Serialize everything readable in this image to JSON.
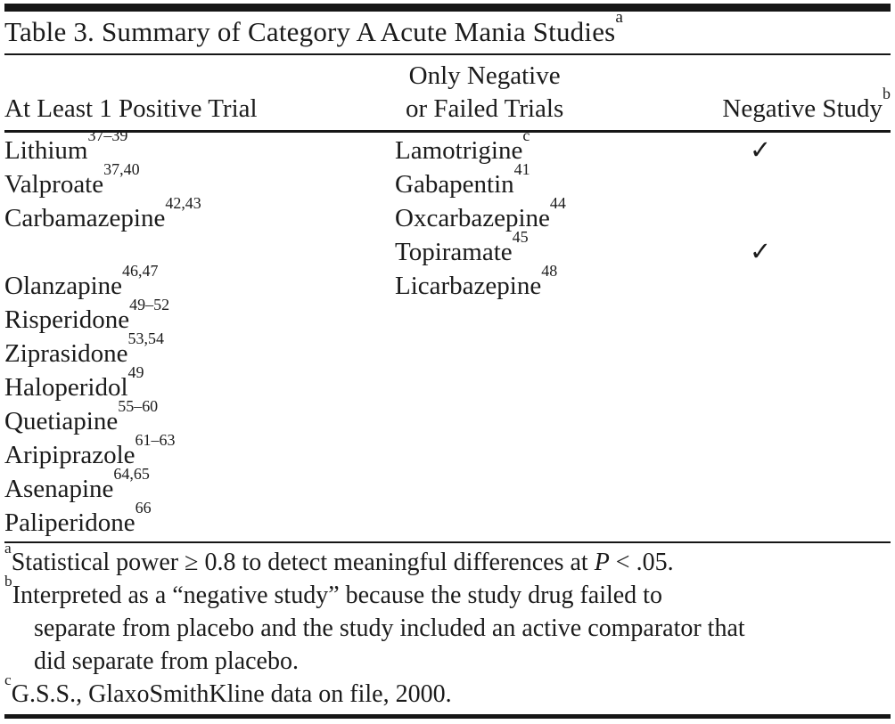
{
  "page": {
    "background_color": "#ffffff",
    "text_color": "#1b1b1b",
    "rule_color": "#161616"
  },
  "title": {
    "text": "Table 3. Summary of Category A Acute Mania Studies",
    "superscript": "a"
  },
  "table": {
    "check_glyph": "✓",
    "headers": {
      "col1": "At Least 1 Positive Trial",
      "col2_line1": "Only Negative",
      "col2_line2": "or Failed Trials",
      "col3": {
        "text": "Negative Study",
        "superscript": "b"
      }
    },
    "rows": [
      {
        "c1": {
          "name": "Lithium",
          "sup": "37–39"
        },
        "c2": {
          "name": "Lamotrigine",
          "sup": "c"
        },
        "check": true
      },
      {
        "c1": {
          "name": "Valproate",
          "sup": "37,40"
        },
        "c2": {
          "name": "Gabapentin",
          "sup": "41"
        },
        "check": false
      },
      {
        "c1": {
          "name": "Carbamazepine",
          "sup": "42,43"
        },
        "c2": {
          "name": "Oxcarbazepine",
          "sup": "44"
        },
        "check": false
      },
      {
        "c1": null,
        "c2": {
          "name": "Topiramate",
          "sup": "45"
        },
        "check": true
      },
      {
        "c1": {
          "name": "Olanzapine",
          "sup": "46,47"
        },
        "c2": {
          "name": "Licarbazepine",
          "sup": "48"
        },
        "check": false
      },
      {
        "c1": {
          "name": "Risperidone",
          "sup": "49–52"
        },
        "c2": null,
        "check": false
      },
      {
        "c1": {
          "name": "Ziprasidone",
          "sup": "53,54"
        },
        "c2": null,
        "check": false
      },
      {
        "c1": {
          "name": "Haloperidol",
          "sup": "49"
        },
        "c2": null,
        "check": false
      },
      {
        "c1": {
          "name": "Quetiapine",
          "sup": "55–60"
        },
        "c2": null,
        "check": false
      },
      {
        "c1": {
          "name": "Aripiprazole",
          "sup": "61–63"
        },
        "c2": null,
        "check": false
      },
      {
        "c1": {
          "name": "Asenapine",
          "sup": "64,65"
        },
        "c2": null,
        "check": false
      },
      {
        "c1": {
          "name": "Paliperidone",
          "sup": "66"
        },
        "c2": null,
        "check": false
      }
    ]
  },
  "footnotes": [
    {
      "marker": "a",
      "lines": [
        [
          {
            "text": "Statistical power ≥ 0.8 to detect meaningful differences at "
          },
          {
            "text": "P",
            "italic": true
          },
          {
            "text": " < .05."
          }
        ]
      ]
    },
    {
      "marker": "b",
      "lines": [
        [
          {
            "text": "Interpreted as a “negative study” because the study drug failed to"
          }
        ],
        [
          {
            "text": "separate from placebo and the study included an active comparator that"
          }
        ],
        [
          {
            "text": "did separate from placebo."
          }
        ]
      ]
    },
    {
      "marker": "c",
      "lines": [
        [
          {
            "text": "G.S.S., GlaxoSmithKline data on file, 2000."
          }
        ]
      ]
    }
  ]
}
